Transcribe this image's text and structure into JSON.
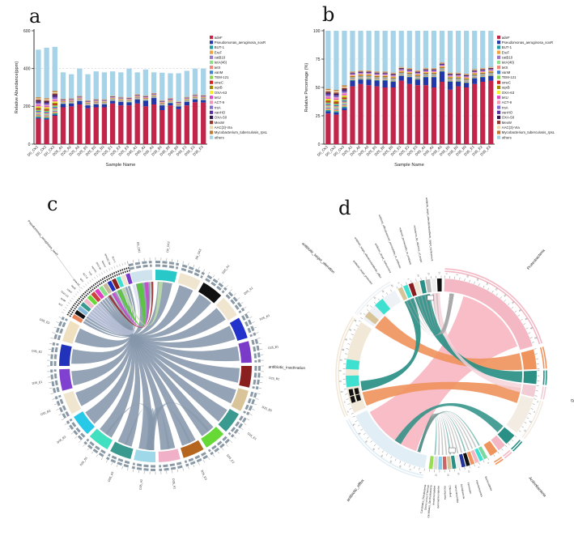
{
  "figure": {
    "panels": {
      "a": "a",
      "b": "b",
      "c": "c",
      "d": "d"
    }
  },
  "palette": {
    "adeF": "#c2254a",
    "soxR": "#2237a8",
    "minor": [
      "#1b9e9e",
      "#f2a33c",
      "#9a79c8",
      "#8ce08a",
      "#ef8576",
      "#3d7fd0",
      "#8ad44f",
      "#d42020",
      "#9f8a00",
      "#f5ef2a",
      "#e049c8",
      "#f293b8",
      "#7f6fd0",
      "#5c2d9e",
      "#32174d",
      "#90372e",
      "#e9d9ac",
      "#c27a33"
    ],
    "others": "#a6d3e8"
  },
  "minor_gene_names": [
    "BUT-1",
    "EreF",
    "catB10",
    "tetA(46)",
    "tetX",
    "vanM",
    "TEM-121",
    "smeC",
    "oqxB",
    "OXA-63",
    "tetU",
    "ACT-9",
    "rrsA",
    "vanHO",
    "OXA-50",
    "MexW",
    "AAC(3)-VIa",
    "Mycobacterium_tuberculosis_rpsL"
  ],
  "minorA": [
    6,
    6,
    7,
    1.5,
    1.5,
    1.5,
    1.5,
    1.5,
    1.5,
    1.5,
    1.5,
    1.5,
    1.5,
    1.5,
    1.5,
    1.5,
    1.5,
    1.5,
    1.5,
    1.5,
    1.5
  ],
  "minorB": [
    1.1,
    1.1,
    1.1,
    0.45,
    0.45,
    0.45,
    0.45,
    0.45,
    0.45,
    0.45,
    0.45,
    0.45,
    0.45,
    0.45,
    0.45,
    0.45,
    0.45,
    0.45,
    0.45,
    0.45,
    0.45
  ],
  "chart_data": [
    {
      "id": "a",
      "type": "bar",
      "stacked": true,
      "xlabel": "Sample Name",
      "ylabel": "Relative Abundance(ppm)",
      "ylim": [
        0,
        600
      ],
      "yticks": [
        0,
        200,
        400,
        600
      ],
      "grid": "dashed-horizontal",
      "legend_position": "right",
      "categories": [
        "D0_CK1",
        "D0_CK2",
        "D0_CK3",
        "D25_A1",
        "D25_A2",
        "D25_A3",
        "D25_B1",
        "D25_B2",
        "D25_B3",
        "D25_E1",
        "D25_E2",
        "D25_E3",
        "D35_A1",
        "D35_A2",
        "D35_A3",
        "D35_B1",
        "D35_B2",
        "D35_B3",
        "D35_E1",
        "D35_E2",
        "D35_E3"
      ],
      "first_series": {
        "name": "adeF",
        "values": [
          135,
          130,
          150,
          195,
          200,
          210,
          190,
          195,
          195,
          215,
          205,
          205,
          215,
          200,
          210,
          180,
          205,
          185,
          205,
          222,
          220
        ]
      },
      "second_series": {
        "name": "Pseudomonas_aeruginosa_soxR",
        "values": [
          5,
          5,
          6,
          18,
          15,
          18,
          15,
          16,
          15,
          14,
          18,
          16,
          22,
          30,
          34,
          25,
          12,
          14,
          18,
          14,
          13
        ]
      },
      "minor_ref": "minorA",
      "others_series": {
        "name": "others",
        "values": [
          252,
          267,
          233,
          140,
          128,
          145,
          138,
          147,
          143,
          129,
          130,
          152,
          116,
          138,
          109,
          146,
          131,
          149,
          138,
          137,
          140
        ]
      }
    },
    {
      "id": "b",
      "type": "bar",
      "stacked": true,
      "xlabel": "Sample Name",
      "ylabel": "Relative Percentage (%)",
      "ylim": [
        0,
        100
      ],
      "yticks": [
        0,
        25,
        50,
        75,
        100
      ],
      "grid": "dashed-horizontal",
      "legend_position": "right",
      "categories": [
        "D0_CK1",
        "D0_CK2",
        "D0_CK3",
        "D25_A1",
        "D25_A2",
        "D25_A3",
        "D25_B1",
        "D25_B2",
        "D25_B3",
        "D25_E1",
        "D25_E2",
        "D25_E3",
        "D35_A1",
        "D35_A2",
        "D35_A3",
        "D35_B1",
        "D35_B2",
        "D35_B3",
        "D35_E1",
        "D35_E2",
        "D35_E3"
      ],
      "first_series": {
        "name": "adeF",
        "values": [
          27,
          26,
          30,
          51,
          53,
          52,
          51,
          50,
          50,
          56,
          53,
          52,
          52,
          50,
          55,
          48,
          51,
          50,
          53,
          55,
          56
        ]
      },
      "second_series": {
        "name": "Pseudomonas_aeruginosa_soxR",
        "values": [
          2,
          2,
          2,
          5,
          4,
          5,
          5,
          6,
          5,
          4,
          6,
          5,
          7,
          9,
          9,
          7,
          4,
          4,
          5,
          4,
          4
        ]
      },
      "minor_ref": "minorB",
      "others_series": {
        "name": "others",
        "values": [
          51.2,
          52.2,
          48.2,
          35.9,
          34.9,
          34.9,
          35.9,
          35.9,
          36.9,
          31.9,
          32.9,
          34.9,
          32.9,
          32.9,
          27.9,
          36.9,
          36.9,
          37.9,
          33.9,
          32.9,
          31.9
        ]
      }
    },
    {
      "id": "c",
      "type": "chord",
      "description": "circos of ARG genes vs samples, grey ribbons",
      "sample_labels": [
        "D0_CK1",
        "D0_CK2",
        "D0_CK3",
        "D25_A1",
        "D25_A2",
        "D25_A3",
        "D25_B1",
        "D25_B2",
        "D25_B3",
        "D25_E1",
        "D25_E2",
        "D25_E3",
        "D35_A1",
        "D35_A2",
        "D35_A3",
        "D35_B1",
        "D35_B2",
        "D35_B3",
        "D35_E1",
        "D35_E2",
        "D35_E3"
      ],
      "sample_ring_colors": [
        "#cfe3ef",
        "#28c8c8",
        "#f0e6d0",
        "#111111",
        "#f0e6d0",
        "#2233cc",
        "#7a3bc8",
        "#8a1f1f",
        "#d9c49a",
        "#3a9a8f",
        "#66d937",
        "#b5651d",
        "#f0b0c8",
        "#9fd8e8",
        "#3a9a8f",
        "#40e0c0",
        "#28c8e8",
        "#f0e6d0",
        "#8040d0",
        "#2233bb",
        "#efe0c0"
      ],
      "gene_labels": [
        "tetX",
        "vanM",
        "TEM-121",
        "smeC",
        "oqxB",
        "OXA-63",
        "tetU",
        "ACT-9",
        "rrsA",
        "vanHO",
        "OXA-50",
        "MexW",
        "AAC(3)-VIa",
        "BUT-1"
      ],
      "gene_ring_colors": [
        "#e8835a",
        "#111111",
        "#86b8d8",
        "#3a9a8f",
        "#f4b8c8",
        "#66d937",
        "#d04040",
        "#e040c0",
        "#8ce08a",
        "#c8b89a",
        "#2233bb",
        "#8a1f1f",
        "#40e0d0",
        "#f0e6d0",
        "#7a3bc8"
      ],
      "callout_label": "Pseudomonas_aeruginosa_soxR",
      "ring_color": "#8a99a6",
      "chord_color": "#8596ab"
    },
    {
      "id": "d",
      "type": "chord",
      "description": "circos of resistance mechanisms vs phyla",
      "major_labels": {
        "proteobacteria": "Proteobacteria",
        "others": "Others",
        "actinobacteria": "Actinobacteria",
        "efflux": "antibiotic_efflux",
        "inactivation": "antibiotic_inactivation",
        "alteration": "antibiotic_target_alteration"
      },
      "phyla_labels": [
        "Bacteroidetes",
        "Planctomycetes",
        "Firmicutes",
        "Acidobacteria",
        "Verrucomicrobia",
        "Chloroflexi",
        "Ascomycota",
        "Gemmatimonadetes",
        "Armatimonadetes",
        "Candidatus_Saccharibacteria",
        "Deinococcus-Thermus",
        "Candidatus_Rokubacteria"
      ],
      "mechanism_labels": [
        "antibiotic_target_protection",
        "antibiotic_target_alteration&antibiotic_efflux",
        "antibiotic_target_replacement",
        "antibiotic_efflux&reduced_permeability_to_antibiotic",
        "reduced_permeability_to_antibiotic",
        "resistance_by_absence_of_target",
        "antibiotic_target_alteration&antibiotic_target_replacement"
      ],
      "colors": {
        "pink": "#f4b8c4",
        "pink_chord": "#f7b8c3",
        "orange": "#f0945e",
        "teal": "#2a8f85",
        "cream": "#f2e8d8",
        "pale_blue": "#e2eef5",
        "pale_grey": "#eef2f6",
        "cyan": "#40e0d0",
        "tan": "#d9c49a",
        "dark_red": "#8a1f1f"
      },
      "phyla_seg_colors": [
        "#7ad9a0",
        "#40e0d0",
        "#f4b8c4",
        "#f0945e",
        "#111111",
        "#223399",
        "#eeeeee",
        "#2a8f85",
        "#d9c49a",
        "#cc6666",
        "#88ccee",
        "#dddddd",
        "#99dd55"
      ]
    }
  ]
}
